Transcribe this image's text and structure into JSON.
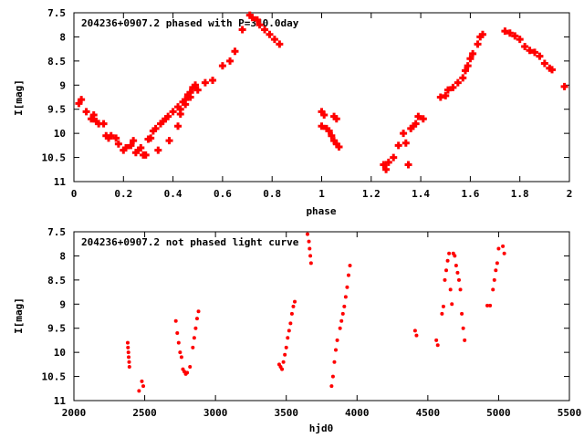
{
  "chart_data": [
    {
      "type": "scatter",
      "title": "204236+0907.2 phased with P=340.0day",
      "xlabel": "phase",
      "ylabel": "I[mag]",
      "xlim": [
        0,
        2
      ],
      "ylim": [
        7.5,
        11
      ],
      "y_inverted": true,
      "marker_color": "#ff0000",
      "marker_shape": "plus",
      "grid": false,
      "xticks": [
        "0",
        "0.2",
        "0.4",
        "0.6",
        "0.8",
        "1",
        "1.2",
        "1.4",
        "1.6",
        "1.8",
        "2"
      ],
      "yticks": [
        "7.5",
        "8",
        "8.5",
        "9",
        "9.5",
        "10",
        "10.5",
        "11"
      ],
      "series": [
        {
          "points": [
            [
              0.02,
              9.38
            ],
            [
              0.03,
              9.3
            ],
            [
              0.05,
              9.55
            ],
            [
              0.07,
              9.7
            ],
            [
              0.08,
              9.62
            ],
            [
              0.09,
              9.75
            ],
            [
              0.1,
              9.8
            ],
            [
              0.12,
              9.8
            ],
            [
              0.13,
              10.05
            ],
            [
              0.14,
              10.1
            ],
            [
              0.15,
              10.05
            ],
            [
              0.17,
              10.1
            ],
            [
              0.18,
              10.22
            ],
            [
              0.2,
              10.35
            ],
            [
              0.21,
              10.3
            ],
            [
              0.23,
              10.25
            ],
            [
              0.24,
              10.15
            ],
            [
              0.25,
              10.4
            ],
            [
              0.26,
              10.35
            ],
            [
              0.27,
              10.3
            ],
            [
              0.28,
              10.45
            ],
            [
              0.29,
              10.45
            ],
            [
              0.3,
              10.12
            ],
            [
              0.31,
              10.1
            ],
            [
              0.32,
              9.95
            ],
            [
              0.33,
              9.9
            ],
            [
              0.34,
              10.35
            ],
            [
              0.35,
              9.8
            ],
            [
              0.36,
              9.75
            ],
            [
              0.37,
              9.7
            ],
            [
              0.38,
              9.65
            ],
            [
              0.385,
              10.15
            ],
            [
              0.4,
              9.55
            ],
            [
              0.42,
              9.45
            ],
            [
              0.43,
              9.5
            ],
            [
              0.44,
              9.35
            ],
            [
              0.45,
              9.3
            ],
            [
              0.46,
              9.2
            ],
            [
              0.47,
              9.15
            ],
            [
              0.48,
              9.05
            ],
            [
              0.49,
              9.0
            ],
            [
              0.5,
              9.1
            ],
            [
              0.47,
              9.25
            ],
            [
              0.45,
              9.4
            ],
            [
              0.43,
              9.6
            ],
            [
              0.42,
              9.85
            ],
            [
              0.53,
              8.95
            ],
            [
              0.56,
              8.9
            ],
            [
              0.6,
              8.6
            ],
            [
              0.63,
              8.5
            ],
            [
              0.65,
              8.3
            ],
            [
              0.68,
              7.85
            ],
            [
              0.71,
              7.55
            ],
            [
              0.72,
              7.6
            ],
            [
              0.74,
              7.65
            ],
            [
              0.75,
              7.75
            ],
            [
              0.77,
              7.85
            ],
            [
              0.79,
              7.95
            ],
            [
              0.81,
              8.05
            ],
            [
              0.83,
              8.15
            ],
            [
              1.0,
              9.55
            ],
            [
              1.01,
              9.62
            ],
            [
              1.0,
              9.85
            ],
            [
              1.02,
              9.9
            ],
            [
              1.03,
              9.95
            ],
            [
              1.04,
              10.05
            ],
            [
              1.05,
              10.15
            ],
            [
              1.06,
              10.22
            ],
            [
              1.07,
              10.28
            ],
            [
              1.05,
              9.65
            ],
            [
              1.06,
              9.7
            ],
            [
              1.25,
              10.65
            ],
            [
              1.26,
              10.75
            ],
            [
              1.27,
              10.6
            ],
            [
              1.29,
              10.5
            ],
            [
              1.31,
              10.25
            ],
            [
              1.33,
              10.0
            ],
            [
              1.34,
              10.2
            ],
            [
              1.35,
              10.65
            ],
            [
              1.36,
              9.9
            ],
            [
              1.37,
              9.85
            ],
            [
              1.38,
              9.8
            ],
            [
              1.39,
              9.65
            ],
            [
              1.41,
              9.7
            ],
            [
              1.48,
              9.25
            ],
            [
              1.5,
              9.22
            ],
            [
              1.51,
              9.1
            ],
            [
              1.53,
              9.05
            ],
            [
              1.55,
              8.95
            ],
            [
              1.57,
              8.85
            ],
            [
              1.58,
              8.7
            ],
            [
              1.59,
              8.6
            ],
            [
              1.6,
              8.45
            ],
            [
              1.61,
              8.35
            ],
            [
              1.63,
              8.15
            ],
            [
              1.64,
              8.0
            ],
            [
              1.65,
              7.95
            ],
            [
              1.74,
              7.88
            ],
            [
              1.76,
              7.92
            ],
            [
              1.78,
              7.98
            ],
            [
              1.8,
              8.05
            ],
            [
              1.82,
              8.2
            ],
            [
              1.84,
              8.28
            ],
            [
              1.86,
              8.32
            ],
            [
              1.88,
              8.4
            ],
            [
              1.9,
              8.55
            ],
            [
              1.92,
              8.65
            ],
            [
              1.93,
              8.68
            ],
            [
              1.98,
              9.03
            ]
          ]
        }
      ]
    },
    {
      "type": "scatter",
      "title": "204236+0907.2 not phased light curve",
      "xlabel": "hjd0",
      "ylabel": "I[mag]",
      "xlim": [
        2000,
        5500
      ],
      "ylim": [
        7.5,
        11
      ],
      "y_inverted": true,
      "marker_color": "#ff0000",
      "marker_shape": "dot",
      "grid": false,
      "xticks": [
        "2000",
        "2500",
        "3000",
        "3500",
        "4000",
        "4500",
        "5000",
        "5500"
      ],
      "yticks": [
        "7.5",
        "8",
        "8.5",
        "9",
        "9.5",
        "10",
        "10.5",
        "11"
      ],
      "series": [
        {
          "points": [
            [
              2380,
              9.8
            ],
            [
              2382,
              9.9
            ],
            [
              2385,
              10.0
            ],
            [
              2387,
              10.1
            ],
            [
              2390,
              10.2
            ],
            [
              2392,
              10.3
            ],
            [
              2460,
              10.8
            ],
            [
              2480,
              10.6
            ],
            [
              2490,
              10.7
            ],
            [
              2720,
              9.35
            ],
            [
              2730,
              9.6
            ],
            [
              2740,
              9.8
            ],
            [
              2750,
              10.0
            ],
            [
              2760,
              10.1
            ],
            [
              2770,
              10.35
            ],
            [
              2780,
              10.4
            ],
            [
              2790,
              10.45
            ],
            [
              2800,
              10.42
            ],
            [
              2820,
              10.3
            ],
            [
              2840,
              9.9
            ],
            [
              2850,
              9.7
            ],
            [
              2860,
              9.5
            ],
            [
              2870,
              9.3
            ],
            [
              2880,
              9.15
            ],
            [
              3450,
              10.25
            ],
            [
              3460,
              10.3
            ],
            [
              3470,
              10.35
            ],
            [
              3480,
              10.2
            ],
            [
              3490,
              10.05
            ],
            [
              3500,
              9.9
            ],
            [
              3510,
              9.7
            ],
            [
              3520,
              9.55
            ],
            [
              3530,
              9.4
            ],
            [
              3540,
              9.2
            ],
            [
              3550,
              9.05
            ],
            [
              3560,
              8.95
            ],
            [
              3650,
              7.55
            ],
            [
              3660,
              7.7
            ],
            [
              3665,
              7.85
            ],
            [
              3670,
              8.0
            ],
            [
              3675,
              8.15
            ],
            [
              3820,
              10.7
            ],
            [
              3830,
              10.5
            ],
            [
              3840,
              10.2
            ],
            [
              3850,
              9.95
            ],
            [
              3860,
              9.75
            ],
            [
              3880,
              9.5
            ],
            [
              3890,
              9.35
            ],
            [
              3900,
              9.2
            ],
            [
              3910,
              9.05
            ],
            [
              3920,
              8.85
            ],
            [
              3930,
              8.65
            ],
            [
              3940,
              8.4
            ],
            [
              3950,
              8.2
            ],
            [
              4410,
              9.55
            ],
            [
              4420,
              9.65
            ],
            [
              4560,
              9.75
            ],
            [
              4570,
              9.85
            ],
            [
              4600,
              9.2
            ],
            [
              4610,
              9.05
            ],
            [
              4620,
              8.5
            ],
            [
              4630,
              8.3
            ],
            [
              4640,
              8.1
            ],
            [
              4650,
              7.95
            ],
            [
              4660,
              8.7
            ],
            [
              4670,
              9.0
            ],
            [
              4680,
              7.95
            ],
            [
              4690,
              8.0
            ],
            [
              4700,
              8.2
            ],
            [
              4710,
              8.35
            ],
            [
              4720,
              8.5
            ],
            [
              4730,
              8.7
            ],
            [
              4740,
              9.2
            ],
            [
              4750,
              9.5
            ],
            [
              4760,
              9.75
            ],
            [
              4920,
              9.03
            ],
            [
              4940,
              9.03
            ],
            [
              4960,
              8.7
            ],
            [
              4970,
              8.5
            ],
            [
              4980,
              8.3
            ],
            [
              4990,
              8.15
            ],
            [
              5000,
              7.85
            ],
            [
              5030,
              7.8
            ],
            [
              5040,
              7.95
            ]
          ]
        }
      ]
    }
  ]
}
